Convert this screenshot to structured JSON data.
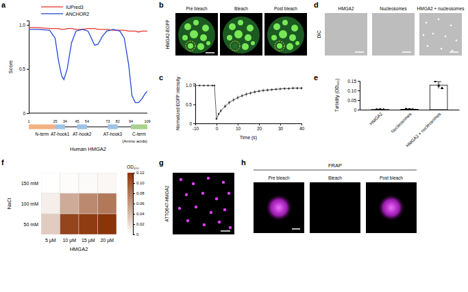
{
  "chart_data": [
    {
      "panel_label": "a",
      "type": "line",
      "ylabel": "Score",
      "x": [
        1,
        10,
        20,
        25,
        28,
        31,
        33,
        36,
        40,
        44,
        50,
        55,
        58,
        61,
        64,
        68,
        72,
        78,
        84,
        88,
        92,
        95,
        98,
        101,
        104,
        107,
        109
      ],
      "series": [
        {
          "name": "IUPred3",
          "color": "#e8352e",
          "values": [
            0.97,
            0.97,
            0.96,
            0.96,
            0.96,
            0.95,
            0.95,
            0.96,
            0.96,
            0.95,
            0.95,
            0.96,
            0.96,
            0.96,
            0.95,
            0.95,
            0.95,
            0.94,
            0.94,
            0.94,
            0.93,
            0.93,
            0.93,
            0.92,
            0.93,
            0.93,
            0.93
          ]
        },
        {
          "name": "ANCHOR2",
          "color": "#2346d6",
          "values": [
            0.95,
            0.95,
            0.94,
            0.85,
            0.6,
            0.42,
            0.38,
            0.5,
            0.8,
            0.93,
            0.95,
            0.93,
            0.85,
            0.77,
            0.78,
            0.87,
            0.93,
            0.95,
            0.93,
            0.85,
            0.55,
            0.2,
            0.12,
            0.12,
            0.16,
            0.22,
            0.25
          ]
        }
      ],
      "xlim": [
        1,
        109
      ],
      "ylim": [
        0,
        1.05
      ],
      "yticks": [
        0,
        0.5,
        {
          "value": 1,
          "label": "1.0"
        }
      ],
      "tick_labels": "y",
      "legend": "top"
    },
    {
      "panel_label": "c",
      "type": "line",
      "xlabel": "Time (s)",
      "ylabel": "Normalized EGFP intensity",
      "x": [
        -10,
        -8,
        -6,
        -4,
        -2,
        -1,
        0,
        1,
        2,
        4,
        6,
        8,
        10,
        12,
        14,
        16,
        18,
        20,
        22,
        24,
        26,
        28,
        30,
        32,
        34,
        36,
        38,
        40
      ],
      "values": [
        1,
        1,
        1,
        1,
        1,
        1,
        0.12,
        0.25,
        0.33,
        0.45,
        0.55,
        0.62,
        0.68,
        0.73,
        0.77,
        0.8,
        0.83,
        0.85,
        0.87,
        0.88,
        0.89,
        0.9,
        0.91,
        0.92,
        0.92,
        0.93,
        0.93,
        0.93
      ],
      "errors": [
        0.01,
        0.01,
        0.01,
        0.01,
        0.01,
        0.01,
        0.02,
        0.04,
        0.05,
        0.06,
        0.06,
        0.06,
        0.06,
        0.06,
        0.06,
        0.05,
        0.05,
        0.05,
        0.05,
        0.05,
        0.04,
        0.04,
        0.04,
        0.04,
        0.04,
        0.04,
        0.04,
        0.04
      ],
      "color": "#333333",
      "marker": "circle",
      "xlim": [
        -10,
        40
      ],
      "xticks": [
        -10,
        0,
        10,
        20,
        30,
        40
      ],
      "ylim": [
        0,
        1.05
      ],
      "yticks": [
        0,
        0.5,
        {
          "value": 1,
          "label": "1.0"
        }
      ]
    },
    {
      "panel_label": "e",
      "type": "bar",
      "ylabel": "Turbidity (OD₄₀₀)",
      "categories": [
        "HMGA2",
        "Nucleosomes",
        "HMGA2 + nucleosomes"
      ],
      "values": [
        0.001,
        0.002,
        0.128
      ],
      "errors": [
        0.001,
        0.002,
        0.018
      ],
      "points": [
        [
          0.001,
          0.002,
          0
        ],
        [
          0.004,
          0.002,
          0
        ],
        [
          0.148,
          0.125,
          0.112
        ]
      ],
      "color": "#ffffff",
      "ylim": [
        0,
        0.15
      ],
      "yticks": [
        0,
        0.05,
        {
          "value": 0.1,
          "label": "0.10"
        },
        0.15
      ]
    },
    {
      "panel_label": "f",
      "type": "heatmap",
      "xlabel": "HMGA2",
      "ylabel": "NaCl",
      "x_categories": [
        "5 µM",
        "10 µM",
        "15 µM",
        "20 µM"
      ],
      "y_categories": [
        "150 mM",
        "100 mM",
        "50 mM"
      ],
      "values": [
        [
          0,
          0.002,
          0.003,
          0.005
        ],
        [
          0.01,
          0.05,
          0.07,
          0.08
        ],
        [
          0.03,
          0.11,
          0.115,
          0.12
        ]
      ],
      "colorbar": {
        "title": "OD₄₀₀",
        "range": [
          0,
          0.12
        ],
        "ticks": [
          0,
          0.02,
          0.04,
          0.06,
          0.08,
          {
            "value": 0.1,
            "label": "0.10"
          },
          0.12
        ]
      }
    }
  ],
  "protein_map": {
    "title": "Human HMGA2",
    "unit_label": "(Amino acids)",
    "positions": [
      1,
      25,
      34,
      45,
      54,
      73,
      82,
      94,
      109
    ],
    "segments": [
      {
        "name": "N-term",
        "start": 1,
        "end": 25,
        "color": "#f4b183"
      },
      {
        "name": "AT-hook1",
        "start": 25,
        "end": 34,
        "color": "#9dc3e6"
      },
      {
        "name": "AT-hook2",
        "start": 45,
        "end": 54,
        "color": "#9dc3e6"
      },
      {
        "name": "AT-hook3",
        "start": 73,
        "end": 82,
        "color": "#9dc3e6"
      },
      {
        "name": "C-term",
        "start": 94,
        "end": 109,
        "color": "#a9d18e"
      }
    ]
  },
  "image_panels": [
    {
      "panel_label": "b",
      "side_label": "HMGA2-EGFP",
      "titles": [
        "Pre bleach",
        "Bleach",
        "Post bleach"
      ]
    },
    {
      "panel_label": "d",
      "side_label": "DIC",
      "titles": [
        "HMGA2",
        "Nucleosomes",
        "HMGA2 + nucleosomes"
      ]
    },
    {
      "panel_label": "g",
      "side_label": "ATTO647-HMGA2"
    },
    {
      "panel_label": "h",
      "header": "FRAP",
      "titles": [
        "Pre bleach",
        "Bleach",
        "Post bleach"
      ]
    }
  ]
}
